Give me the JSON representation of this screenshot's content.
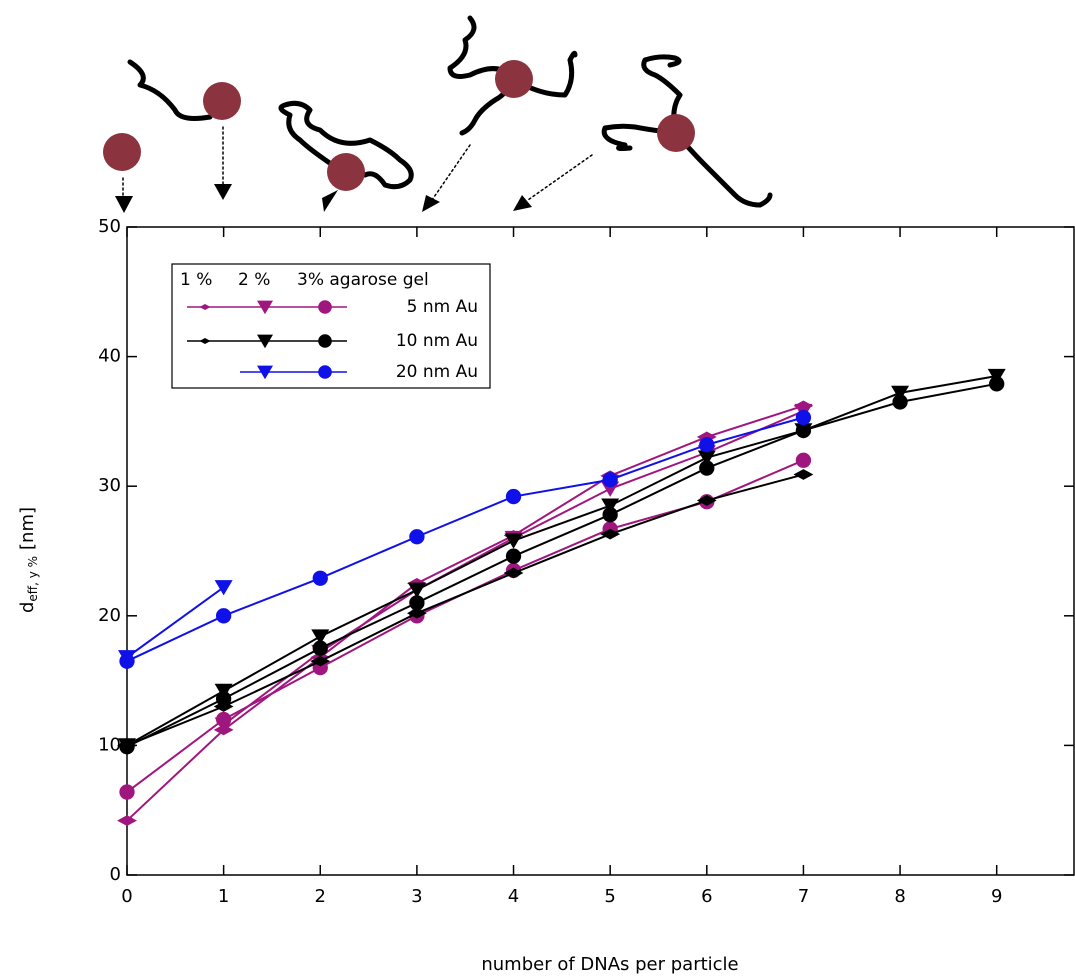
{
  "chart_data": {
    "type": "line",
    "x_label": "number of DNAs per particle",
    "y_label": {
      "main": "d",
      "sub": "eff, y %",
      "unit": "[nm]"
    },
    "x": [
      0,
      1,
      2,
      3,
      4,
      5,
      6,
      7,
      8,
      9
    ],
    "xlim": [
      0,
      9.8
    ],
    "xticks": [
      0,
      1,
      2,
      3,
      4,
      5,
      6,
      7,
      8,
      9
    ],
    "ylim": [
      0,
      50
    ],
    "yticks": [
      0,
      10,
      20,
      30,
      40,
      50
    ],
    "series": [
      {
        "color": "#a0167f",
        "marker": "diamond",
        "values": [
          4.2,
          11.2,
          16.8,
          22.5,
          26.2,
          30.8,
          33.8,
          36.2,
          null,
          null
        ]
      },
      {
        "color": "#a0167f",
        "marker": "triangle",
        "values": [
          null,
          11.6,
          17.2,
          22.0,
          26.0,
          29.8,
          32.6,
          35.8,
          null,
          null
        ]
      },
      {
        "color": "#a0167f",
        "marker": "circle",
        "values": [
          6.4,
          12.0,
          16.0,
          20.0,
          23.5,
          26.7,
          28.8,
          32.0,
          null,
          null
        ]
      },
      {
        "color": "#000000",
        "marker": "diamond",
        "values": [
          10.0,
          13.0,
          16.5,
          20.2,
          23.3,
          26.3,
          28.9,
          30.9,
          null,
          null
        ]
      },
      {
        "color": "#000000",
        "marker": "triangle",
        "values": [
          10.0,
          14.2,
          18.4,
          22.0,
          25.8,
          28.5,
          32.2,
          34.3,
          37.2,
          38.5
        ]
      },
      {
        "color": "#000000",
        "marker": "circle",
        "values": [
          9.9,
          13.6,
          17.5,
          21.0,
          24.6,
          27.8,
          31.4,
          34.3,
          36.5,
          37.9
        ]
      },
      {
        "color": "#1010e8",
        "marker": "triangle",
        "values": [
          16.8,
          22.2,
          null,
          null,
          null,
          null,
          null,
          null,
          null,
          null
        ]
      },
      {
        "color": "#1010e8",
        "marker": "circle",
        "values": [
          16.5,
          20.0,
          22.9,
          26.1,
          29.2,
          30.5,
          33.2,
          35.3,
          null,
          null
        ]
      }
    ],
    "legend": {
      "header": [
        "1 %",
        "2 %",
        "3% agarose gel"
      ],
      "rows": [
        {
          "label": "5 nm Au",
          "color": "#a0167f",
          "markers": [
            "diamond",
            "triangle",
            "circle"
          ]
        },
        {
          "label": "10 nm Au",
          "color": "#000000",
          "markers": [
            "diamond",
            "triangle",
            "circle"
          ]
        },
        {
          "label": "20 nm Au",
          "color": "#1010e8",
          "markers": [
            null,
            "triangle",
            "circle"
          ]
        }
      ]
    }
  }
}
